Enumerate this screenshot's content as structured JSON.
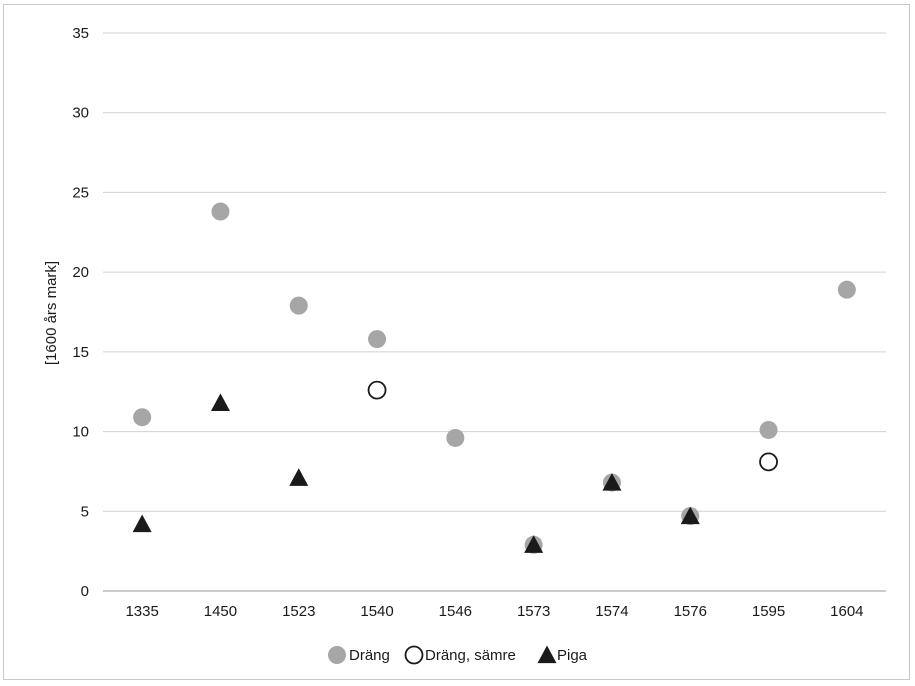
{
  "chart_data": {
    "type": "scatter",
    "categories": [
      "1335",
      "1450",
      "1523",
      "1540",
      "1546",
      "1573",
      "1574",
      "1576",
      "1595",
      "1604"
    ],
    "ylabel": "[1600 års mark]",
    "xlabel": "",
    "title": "",
    "ylim": [
      0,
      35
    ],
    "yticks": [
      0,
      5,
      10,
      15,
      20,
      25,
      30,
      35
    ],
    "grid": "horizontal",
    "legend_position": "bottom",
    "series": [
      {
        "name": "Dräng",
        "marker": "filled-circle",
        "color": "#a6a6a6",
        "values": [
          10.9,
          23.8,
          17.9,
          15.8,
          9.6,
          2.9,
          6.8,
          4.7,
          10.1,
          18.9
        ]
      },
      {
        "name": "Dräng, sämre",
        "marker": "open-circle",
        "color": "#1a1a1a",
        "values": [
          null,
          null,
          null,
          12.6,
          null,
          null,
          null,
          null,
          8.1,
          null
        ]
      },
      {
        "name": "Piga",
        "marker": "triangle",
        "color": "#1a1a1a",
        "values": [
          4.2,
          11.8,
          7.1,
          null,
          null,
          2.9,
          6.8,
          4.7,
          null,
          null
        ]
      }
    ]
  }
}
